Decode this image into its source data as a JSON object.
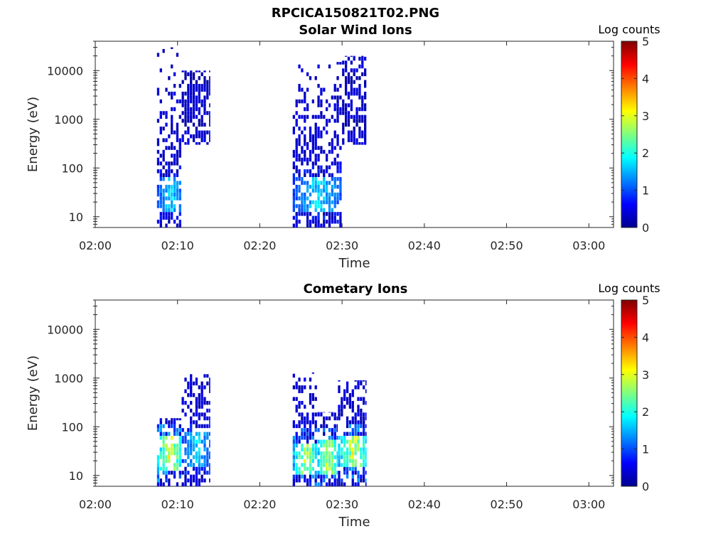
{
  "page_title": "RPCICA150821T02.PNG",
  "colorbar_colors": [
    "#00008f",
    "#0000ff",
    "#0080ff",
    "#00ffff",
    "#80ff80",
    "#ffff00",
    "#ff8000",
    "#ff0000",
    "#800000"
  ],
  "chart_data": [
    {
      "type": "heatmap",
      "title": "Solar Wind Ions",
      "xlabel": "Time",
      "ylabel": "Energy (eV)",
      "y_scale": "log",
      "xlim": [
        "02:00",
        "03:03"
      ],
      "ylim": [
        6,
        40000
      ],
      "x_tick_labels": [
        "02:00",
        "02:10",
        "02:20",
        "02:30",
        "02:40",
        "02:50",
        "03:00"
      ],
      "y_tick_labels": [
        "10",
        "100",
        "1000",
        "10000"
      ],
      "colorbar": {
        "label": "Log counts",
        "range": [
          0,
          5
        ],
        "tick_labels": [
          "0",
          "1",
          "2",
          "3",
          "4",
          "5"
        ]
      },
      "bursts": [
        {
          "start": "02:07:30",
          "end": "02:10:30",
          "energy_min": 6,
          "energy_max": 30000,
          "peak_log_counts": 2.0,
          "peak_energy": 25
        },
        {
          "start": "02:10:30",
          "end": "02:14:00",
          "energy_min": 300,
          "energy_max": 10000,
          "peak_log_counts": 0.5,
          "peak_energy": 2000
        },
        {
          "start": "02:24:00",
          "end": "02:30:00",
          "energy_min": 6,
          "energy_max": 15000,
          "peak_log_counts": 2.0,
          "peak_energy": 25
        },
        {
          "start": "02:30:00",
          "end": "02:33:00",
          "energy_min": 300,
          "energy_max": 20000,
          "peak_log_counts": 0.5,
          "peak_energy": 2000
        }
      ]
    },
    {
      "type": "heatmap",
      "title": "Cometary Ions",
      "xlabel": "Time",
      "ylabel": "Energy (eV)",
      "y_scale": "log",
      "xlim": [
        "02:00",
        "03:03"
      ],
      "ylim": [
        6,
        40000
      ],
      "x_tick_labels": [
        "02:00",
        "02:10",
        "02:20",
        "02:30",
        "02:40",
        "02:50",
        "03:00"
      ],
      "y_tick_labels": [
        "10",
        "100",
        "1000",
        "10000"
      ],
      "colorbar": {
        "label": "Log counts",
        "range": [
          0,
          5
        ],
        "tick_labels": [
          "0",
          "1",
          "2",
          "3",
          "4",
          "5"
        ]
      },
      "bursts": [
        {
          "start": "02:07:30",
          "end": "02:10:30",
          "energy_min": 6,
          "energy_max": 150,
          "peak_log_counts": 3.5,
          "peak_energy": 25
        },
        {
          "start": "02:10:30",
          "end": "02:14:00",
          "energy_min": 6,
          "energy_max": 1200,
          "peak_log_counts": 2.0,
          "peak_energy": 30
        },
        {
          "start": "02:24:00",
          "end": "02:27:00",
          "energy_min": 6,
          "energy_max": 1300,
          "peak_log_counts": 3.2,
          "peak_energy": 20
        },
        {
          "start": "02:27:00",
          "end": "02:29:30",
          "energy_min": 6,
          "energy_max": 200,
          "peak_log_counts": 3.3,
          "peak_energy": 22
        },
        {
          "start": "02:29:30",
          "end": "02:33:00",
          "energy_min": 6,
          "energy_max": 900,
          "peak_log_counts": 3.4,
          "peak_energy": 28
        }
      ]
    }
  ]
}
